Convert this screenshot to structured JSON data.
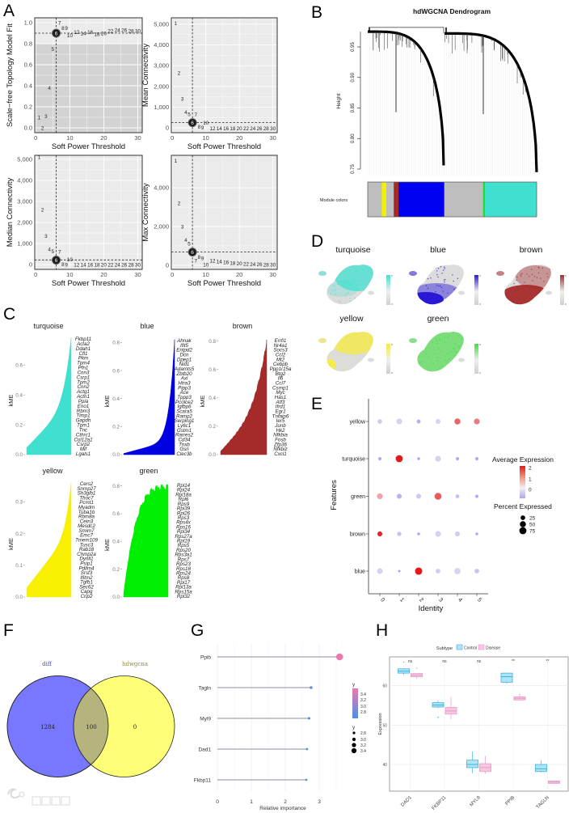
{
  "panel_labels": {
    "A": "A",
    "B": "B",
    "C": "C",
    "D": "D",
    "E": "E",
    "F": "F",
    "G": "G",
    "H": "H"
  },
  "watermark": "大数跨境",
  "chart_data": [
    {
      "id": "A1",
      "type": "scatter",
      "xlabel": "Soft Power Threshold",
      "ylabel": "Scale−free Topology Model Fit",
      "xlim": [
        -0.3,
        31.3
      ],
      "ylim": [
        -0.046,
        1.046
      ],
      "xticks": [
        0,
        10,
        20,
        30
      ],
      "xtick_labels": [
        "0",
        "10",
        "20",
        "30"
      ],
      "yticks": [
        0,
        0.2,
        0.4,
        0.6,
        0.8,
        1.0
      ],
      "ytick_labels": [
        "0.0",
        "0.2",
        "0.4",
        "0.6",
        "0.8",
        "1.0"
      ],
      "threshold": 0.9,
      "selected_power": 6,
      "shade_below": 0.8,
      "powers": [
        1,
        2,
        3,
        4,
        5,
        6,
        7,
        8,
        9,
        10,
        12,
        14,
        16,
        18,
        20,
        22,
        24,
        26,
        28,
        30
      ],
      "values": [
        0.1,
        0.0,
        0.11,
        0.38,
        0.75,
        0.9,
        0.95,
        0.95,
        0.95,
        0.93,
        0.91,
        0.9,
        0.91,
        0.89,
        0.9,
        0.92,
        0.93,
        0.93,
        0.92,
        0.92
      ]
    },
    {
      "id": "A2",
      "type": "scatter",
      "xlabel": "Soft Power Threshold",
      "ylabel": "Mean Connectivity",
      "xlim": [
        -0.3,
        31.3
      ],
      "ylim": [
        -234,
        5310
      ],
      "xticks": [
        0,
        10,
        20,
        30
      ],
      "xtick_labels": [
        "0",
        "10",
        "20",
        "30"
      ],
      "yticks": [
        0,
        1000,
        2000,
        3000,
        4000,
        5000
      ],
      "ytick_labels": [
        "0",
        "1,000",
        "2,000",
        "3,000",
        "4,000",
        "5,000"
      ],
      "threshold": 250,
      "selected_power": 6,
      "powers": [
        1,
        2,
        3,
        4,
        5,
        6,
        7,
        8,
        9,
        10,
        12,
        14,
        16,
        18,
        20,
        22,
        24,
        26,
        28,
        30
      ],
      "values": [
        5050,
        2650,
        1400,
        750,
        400,
        250,
        120,
        60,
        20,
        0,
        -20,
        -20,
        -20,
        -20,
        -20,
        -20,
        -20,
        -20,
        -20,
        -20
      ]
    },
    {
      "id": "A3",
      "type": "scatter",
      "xlabel": "Soft Power Threshold",
      "ylabel": "Median Connectivity",
      "xlim": [
        -0.3,
        31.3
      ],
      "ylim": [
        -230,
        5190
      ],
      "xticks": [
        0,
        10,
        20,
        30
      ],
      "xtick_labels": [
        "0",
        "10",
        "20",
        "30"
      ],
      "yticks": [
        0,
        1000,
        2000,
        3000,
        4000,
        5000
      ],
      "ytick_labels": [
        "0",
        "1,000",
        "2,000",
        "3,000",
        "4,000",
        "5,000"
      ],
      "threshold": 220,
      "selected_power": 6,
      "powers": [
        1,
        2,
        3,
        4,
        5,
        6,
        7,
        8,
        9,
        10,
        12,
        14,
        16,
        18,
        20,
        22,
        24,
        26,
        28,
        30
      ],
      "values": [
        5100,
        2600,
        1350,
        720,
        380,
        210,
        100,
        20,
        0,
        0,
        0,
        0,
        0,
        0,
        0,
        0,
        0,
        0,
        0,
        0
      ]
    },
    {
      "id": "A4",
      "type": "scatter",
      "xlabel": "Soft Power Threshold",
      "ylabel": "Max Connectivity",
      "xlim": [
        -0.3,
        31.3
      ],
      "ylim": [
        -210,
        5670
      ],
      "xticks": [
        0,
        10,
        20,
        30
      ],
      "xtick_labels": [
        "0",
        "10",
        "20",
        "30"
      ],
      "yticks": [
        0,
        2000,
        4000
      ],
      "ytick_labels": [
        "0",
        "2,000",
        "4,000"
      ],
      "threshold": 680,
      "selected_power": 6,
      "powers": [
        1,
        2,
        3,
        4,
        5,
        6,
        7,
        8,
        9,
        10,
        12,
        14,
        16,
        18,
        20,
        22,
        24,
        26,
        28,
        30
      ],
      "values": [
        5400,
        3200,
        2000,
        1300,
        850,
        680,
        520,
        420,
        360,
        300,
        240,
        200,
        160,
        120,
        100,
        80,
        60,
        50,
        40,
        40
      ]
    },
    {
      "id": "B",
      "type": "dendrogram",
      "title": "hdWGCNA Dendrogram",
      "ylabel": "Height",
      "yticks": [
        0.75,
        0.8,
        0.85,
        0.9,
        0.95
      ],
      "ytick_labels": [
        "0.75",
        "0.80",
        "0.85",
        "0.90",
        "0.95"
      ],
      "module_colors_label": "Module colors",
      "module_segments": [
        {
          "module": "grey",
          "color": "#bebebe",
          "fraction": 0.083
        },
        {
          "module": "yellow",
          "color": "#f5f000",
          "fraction": 0.027
        },
        {
          "module": "grey",
          "color": "#bebebe",
          "fraction": 0.044
        },
        {
          "module": "brown",
          "color": "#a52a2a",
          "fraction": 0.029
        },
        {
          "module": "blue",
          "color": "#0000f0",
          "fraction": 0.27
        },
        {
          "module": "grey",
          "color": "#bebebe",
          "fraction": 0.23
        },
        {
          "module": "green",
          "color": "#22dd22",
          "fraction": 0.011
        },
        {
          "module": "turquoise",
          "color": "#40e0d0",
          "fraction": 0.306
        }
      ]
    },
    {
      "id": "C-turquoise",
      "type": "area",
      "title": "turquoise",
      "color": "#40e0d0",
      "ylabel": "kME",
      "ylim": [
        0,
        0.78
      ],
      "yticks": [
        0,
        0.2,
        0.4,
        0.6
      ],
      "ytick_labels": [
        "0.0",
        "0.2",
        "0.4",
        "0.6"
      ],
      "genes": [
        "Fkbp11",
        "Acta2",
        "Ddah1",
        "Cfl1",
        "Pkm",
        "Tpm4",
        "Pfn1",
        "Cnn3",
        "Csrp1",
        "Tpm2",
        "Cnn2",
        "Actg1",
        "Actn1",
        "Ppia",
        "Eno1",
        "Rbm3",
        "Timp1",
        "Gapdh",
        "Tpm1",
        "Tnc",
        "Cthrc1",
        "Col12a1",
        "Csrp2",
        "Mif",
        "Lgals1"
      ]
    },
    {
      "id": "C-blue",
      "type": "area",
      "title": "blue",
      "color": "#0000e0",
      "ylabel": "kME",
      "ylim": [
        0,
        0.82
      ],
      "yticks": [
        0,
        0.2,
        0.4,
        0.6,
        0.8
      ],
      "ytick_labels": [
        "0.0",
        "0.2",
        "0.4",
        "0.6",
        "0.8"
      ],
      "genes": [
        "Ahnak",
        "Ifit5",
        "Entpd2",
        "Dcn",
        "Dpep1",
        "Nid1",
        "Adamts5",
        "Zbtb20",
        "Axl",
        "Htra3",
        "Pipp3",
        "Ace",
        "Tppp3",
        "Pcolce2",
        "Igfbp6",
        "Scara5",
        "Ramp2",
        "Serping1",
        "Ly6c1",
        "Gstm1",
        "Rarres2",
        "Cd34",
        "Tnxb",
        "Gsn",
        "Clec3b"
      ]
    },
    {
      "id": "C-brown",
      "type": "area",
      "title": "brown",
      "color": "#a52a2a",
      "ylabel": "kME",
      "ylim": [
        0,
        0.81
      ],
      "yticks": [
        0,
        0.2,
        0.4,
        0.6,
        0.8
      ],
      "ytick_labels": [
        "0.0",
        "0.2",
        "0.4",
        "0.6",
        "0.8"
      ],
      "genes": [
        "Errfi1",
        "Nr4a1",
        "Socs3",
        "Ccl2",
        "Mt2",
        "Cebpb",
        "Ppp1r15a",
        "Btg2",
        "Il6",
        "Ccl7",
        "Csrnp1",
        "Myc",
        "Has1",
        "Atf3",
        "Ifrd1",
        "Egr1",
        "Tnfaip6",
        "Ier5",
        "Junb",
        "Hk2",
        "Nfkbia",
        "Fosb",
        "Zfp36",
        "Nfkbiz",
        "Cxcl1"
      ]
    },
    {
      "id": "C-yellow",
      "type": "area",
      "title": "yellow",
      "color": "#f8f000",
      "ylabel": "kME",
      "ylim": [
        0,
        0.36
      ],
      "yticks": [
        0,
        0.1,
        0.2,
        0.3
      ],
      "ytick_labels": [
        "0.0",
        "0.1",
        "0.2",
        "0.3"
      ],
      "genes": [
        "Cers2",
        "Snrnp27",
        "Sh3glb1",
        "Thoc7",
        "Pcmt1",
        "Myadm",
        "Tuba1b",
        "Rbm8a",
        "Cetn3",
        "Mesdc2",
        "Smim7",
        "Emc7",
        "Tmem109",
        "Tusc3",
        "Rab18",
        "Chmp2a",
        "Dynll1",
        "Psip1",
        "Pdlim4",
        "Srsf3",
        "Ifitm2",
        "Tgfb1",
        "Sec62",
        "Capg",
        "Crip2"
      ]
    },
    {
      "id": "C-green",
      "type": "area",
      "title": "green",
      "color": "#00ee00",
      "ylabel": "kME",
      "ylim": [
        0,
        0.81
      ],
      "yticks": [
        0,
        0.2,
        0.4,
        0.6,
        0.8
      ],
      "ytick_labels": [
        "0.0",
        "0.2",
        "0.4",
        "0.6",
        "0.8"
      ],
      "genes": [
        "Rpl14",
        "Rpl24",
        "Rpl18a",
        "Rpl6",
        "Rps9",
        "Rpl39",
        "Rpl26",
        "Rps3",
        "Rps4x",
        "Rps16",
        "Rpl34",
        "Rps27a",
        "Rpl19",
        "Rps5",
        "Rps20",
        "Rps3a1",
        "Rps7",
        "Rps23",
        "Rps18",
        "Rps24",
        "Rps8",
        "Rpl17",
        "Rpl13a",
        "Rps15a",
        "Rpl32"
      ]
    },
    {
      "id": "E",
      "type": "dotplot",
      "xlabel": "Identity",
      "ylabel": "Features",
      "identities": [
        "0",
        "1",
        "2",
        "3",
        "4",
        "5"
      ],
      "features": [
        "yellow",
        "turquoise",
        "green",
        "brown",
        "blue"
      ],
      "avg_expression": [
        [
          -0.5,
          -0.4,
          -0.9,
          -0.4,
          1.3,
          1.1
        ],
        [
          -0.9,
          2.0,
          -1.0,
          -0.4,
          -0.9,
          -0.9
        ],
        [
          0.7,
          -0.8,
          -0.5,
          1.4,
          -0.6,
          -0.9
        ],
        [
          1.9,
          -0.6,
          -1.0,
          -0.4,
          -0.5,
          -1.0
        ],
        [
          -0.4,
          -1.0,
          2.0,
          -0.5,
          -0.4,
          -0.6
        ]
      ],
      "pct_expressed": [
        [
          25,
          45,
          15,
          30,
          50,
          45
        ],
        [
          10,
          75,
          5,
          45,
          10,
          10
        ],
        [
          45,
          30,
          30,
          70,
          15,
          10
        ],
        [
          30,
          20,
          5,
          45,
          30,
          5
        ],
        [
          45,
          3,
          80,
          25,
          55,
          25
        ]
      ],
      "legend_color_title": "Average Expression",
      "legend_color_labels": [
        "2",
        "1",
        "0"
      ],
      "legend_size_title": "Percent Expressed",
      "legend_size_labels": [
        "25",
        "50",
        "75"
      ],
      "legend_size_values": [
        25,
        50,
        75
      ],
      "color_low": "#b3a2ee",
      "color_mid": "#f4eef4",
      "color_high": "#e3191b"
    },
    {
      "id": "F",
      "type": "venn",
      "sets": [
        {
          "name": "diff",
          "color": "#7777ff",
          "label_color": "#4b4bb0"
        },
        {
          "name": "hdwgcna",
          "color": "#ffff77",
          "label_color": "#8a8a40"
        }
      ],
      "counts": {
        "diff_only": "1284",
        "both": "100",
        "hdwgcna_only": "0"
      },
      "intersection_color": "#b4b47c"
    },
    {
      "id": "G",
      "type": "lollipop",
      "xlabel": "Relative importance",
      "xticks": [
        0,
        1,
        2,
        3
      ],
      "xtick_labels": [
        "0",
        "1",
        "2",
        "3"
      ],
      "genes": [
        "Ppib",
        "Tagln",
        "Myl9",
        "Dad1",
        "Fkbp11"
      ],
      "values": [
        3.6,
        2.76,
        2.7,
        2.64,
        2.62
      ],
      "legend_color_title": "y",
      "legend_color_labels": [
        "3.4",
        "3.2",
        "3.0",
        "2.8"
      ],
      "legend_size_title": "y",
      "legend_size_labels": [
        "2.8",
        "3.0",
        "3.2",
        "3.4"
      ],
      "color_low": "#4d8fe8",
      "color_high": "#ee78ae"
    },
    {
      "id": "H",
      "type": "boxplot",
      "legend_title": "Subtype",
      "groups": [
        "Control",
        "Disease"
      ],
      "group_colors": [
        "#3fb3e0",
        "#e79ac4"
      ],
      "group_fills": [
        "#aee4f6",
        "#f8c8e2"
      ],
      "ylabel": "Expression",
      "ylim": [
        33.2,
        67.6
      ],
      "yticks": [
        40,
        50,
        60
      ],
      "ytick_labels": [
        "40",
        "50",
        "60"
      ],
      "categories": [
        "DAD1",
        "FKBP11",
        "MYL9",
        "PPIB",
        "TAGLN"
      ],
      "significance": [
        "ns",
        "ns",
        "ns",
        "**",
        "**"
      ],
      "boxes": [
        [
          {
            "min": 62.8,
            "q1": 63.2,
            "median": 63.7,
            "q3": 64.3,
            "max": 64.5,
            "outliers": [
              66
            ]
          },
          {
            "min": 61.8,
            "q1": 62.3,
            "median": 62.7,
            "q3": 63.1,
            "max": 63.1,
            "outliers": [
              64.5
            ]
          }
        ],
        [
          {
            "min": 54.3,
            "q1": 54.6,
            "median": 55.1,
            "q3": 55.7,
            "max": 56.2,
            "outliers": [
              52
            ]
          },
          {
            "min": 51.5,
            "q1": 52.8,
            "median": 53.6,
            "q3": 54.5,
            "max": 57.2,
            "outliers": []
          }
        ],
        [
          {
            "min": 37.8,
            "q1": 39.2,
            "median": 40.0,
            "q3": 41.1,
            "max": 43.3,
            "outliers": []
          },
          {
            "min": 37.6,
            "q1": 38.2,
            "median": 39.2,
            "q3": 40.2,
            "max": 42.2,
            "outliers": []
          }
        ],
        [
          {
            "min": 60.5,
            "q1": 60.9,
            "median": 62.3,
            "q3": 63.2,
            "max": 63.2,
            "outliers": []
          },
          {
            "min": 56.3,
            "q1": 56.4,
            "median": 56.8,
            "q3": 57.2,
            "max": 58.1,
            "outliers": []
          }
        ],
        [
          {
            "min": 38.0,
            "q1": 38.2,
            "median": 38.9,
            "q3": 40.0,
            "max": 41.1,
            "outliers": []
          },
          {
            "min": 35.1,
            "q1": 35.2,
            "median": 35.5,
            "q3": 35.8,
            "max": 35.9,
            "outliers": []
          }
        ]
      ]
    }
  ],
  "panel_d": {
    "modules": [
      {
        "name": "turquoise",
        "color": "#40e0d0"
      },
      {
        "name": "blue",
        "color": "#2a18d8"
      },
      {
        "name": "brown",
        "color": "#a52a2a"
      },
      {
        "name": "yellow",
        "color": "#f7ec3c"
      },
      {
        "name": "green",
        "color": "#3be03b"
      }
    ]
  }
}
